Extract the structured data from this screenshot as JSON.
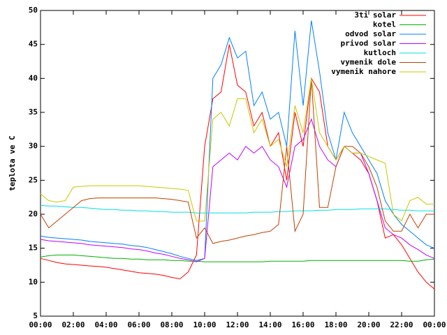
{
  "chart_data": {
    "type": "line",
    "y_label": "teplota ve C",
    "x": [
      0,
      0.5,
      1,
      1.5,
      2,
      2.5,
      3,
      3.5,
      4,
      4.5,
      5,
      5.5,
      6,
      6.5,
      7,
      7.5,
      8,
      8.5,
      9,
      9.5,
      10,
      10.5,
      11,
      11.5,
      12,
      12.5,
      13,
      13.5,
      14,
      14.5,
      15,
      15.5,
      16,
      16.5,
      17,
      17.5,
      18,
      18.5,
      19,
      19.5,
      20,
      20.5,
      21,
      21.5,
      22,
      22.5,
      23,
      23.5,
      24
    ],
    "xlim": [
      0,
      24
    ],
    "xticks": [
      {
        "value": 0,
        "label": "00:00"
      },
      {
        "value": 2,
        "label": "02:00"
      },
      {
        "value": 4,
        "label": "04:00"
      },
      {
        "value": 6,
        "label": "06:00"
      },
      {
        "value": 8,
        "label": "08:00"
      },
      {
        "value": 10,
        "label": "10:00"
      },
      {
        "value": 12,
        "label": "12:00"
      },
      {
        "value": 14,
        "label": "14:00"
      },
      {
        "value": 16,
        "label": "16:00"
      },
      {
        "value": 18,
        "label": "18:00"
      },
      {
        "value": 20,
        "label": "20:00"
      },
      {
        "value": 22,
        "label": "22:00"
      },
      {
        "value": 24,
        "label": "00:00"
      }
    ],
    "ylim": [
      5,
      50
    ],
    "yticks": [
      5,
      10,
      15,
      20,
      25,
      30,
      35,
      40,
      45,
      50
    ],
    "legend": "top-right",
    "series": [
      {
        "name": "3ti solar",
        "color": "#ff0000",
        "values": [
          13.5,
          13.2,
          12.9,
          12.7,
          12.6,
          12.5,
          12.4,
          12.3,
          12.2,
          12.0,
          11.8,
          11.6,
          11.4,
          11.3,
          11.2,
          11.0,
          10.7,
          10.5,
          11.5,
          14,
          30,
          37,
          38,
          45,
          39,
          38,
          33,
          35,
          30,
          32,
          25,
          35,
          30,
          40,
          38,
          30,
          28,
          30,
          29,
          28,
          26,
          22,
          16.5,
          17,
          15.5,
          13.5,
          11.5,
          10,
          9
        ]
      },
      {
        "name": "kotel",
        "color": "#00b000",
        "values": [
          13.7,
          13.9,
          14,
          14,
          14,
          13.9,
          13.8,
          13.7,
          13.6,
          13.5,
          13.5,
          13.4,
          13.4,
          13.3,
          13.3,
          13.3,
          13.2,
          13.2,
          13.1,
          13.1,
          13,
          13,
          13,
          13,
          13,
          13,
          13,
          13,
          13.1,
          13.1,
          13.1,
          13.1,
          13.1,
          13.2,
          13.2,
          13.2,
          13.2,
          13.2,
          13.2,
          13.2,
          13.2,
          13.2,
          13.2,
          13.2,
          13.2,
          13.1,
          13.1,
          13.3,
          13.4
        ]
      },
      {
        "name": "odvod solar",
        "color": "#0080ff",
        "values": [
          16.8,
          16.6,
          16.5,
          16.4,
          16.3,
          16.2,
          16.0,
          15.9,
          15.8,
          15.7,
          15.6,
          15.4,
          15.3,
          15.1,
          14.8,
          14.5,
          14.2,
          13.8,
          13.5,
          13.2,
          13.5,
          40,
          42,
          46,
          43,
          44,
          36,
          38,
          34,
          35,
          30,
          47,
          36,
          48.5,
          41,
          32,
          28,
          35,
          32,
          30,
          28,
          26,
          22,
          20,
          18.5,
          17.5,
          16.5,
          15.5,
          15
        ]
      },
      {
        "name": "privod solar",
        "color": "#c000ff",
        "values": [
          16.3,
          16.1,
          16,
          15.9,
          15.8,
          15.7,
          15.5,
          15.4,
          15.3,
          15.2,
          15.1,
          14.9,
          14.8,
          14.6,
          14.3,
          14.1,
          13.8,
          13.5,
          13.3,
          13,
          13.5,
          27,
          28,
          29,
          28,
          30,
          29,
          30,
          28,
          27,
          24,
          30,
          31,
          34,
          30,
          28,
          27,
          30,
          29,
          29,
          26,
          22,
          18,
          17,
          16.5,
          15.5,
          14.8,
          14,
          13.5
        ]
      },
      {
        "name": "kutloch",
        "color": "#00e0e0",
        "values": [
          21.3,
          21.2,
          21.2,
          21.1,
          21,
          21,
          20.9,
          20.8,
          20.7,
          20.7,
          20.6,
          20.6,
          20.5,
          20.5,
          20.4,
          20.4,
          20.3,
          20.3,
          20.3,
          20.2,
          20.2,
          20.2,
          20.2,
          20.2,
          20.2,
          20.2,
          20.3,
          20.3,
          20.3,
          20.4,
          20.4,
          20.5,
          20.5,
          20.5,
          20.6,
          20.6,
          20.7,
          20.7,
          20.7,
          20.8,
          20.8,
          20.8,
          20.8,
          20.7,
          20.6,
          20.6,
          20.5,
          20.5,
          20.5
        ]
      },
      {
        "name": "vymenik dole",
        "color": "#c04000",
        "values": [
          20,
          18,
          19,
          20,
          21,
          22,
          22.3,
          22.4,
          22.4,
          22.4,
          22.4,
          22.4,
          22.4,
          22.4,
          22.4,
          22.3,
          22.2,
          22,
          21.8,
          16.5,
          18,
          15.7,
          16,
          16.2,
          16.5,
          16.8,
          17,
          17.3,
          17.5,
          18.5,
          30,
          17.5,
          20,
          40,
          21,
          21,
          27,
          30,
          30,
          29,
          27,
          24,
          19,
          17.5,
          17.5,
          20,
          18,
          20,
          20
        ]
      },
      {
        "name": "vymenik nahore",
        "color": "#c8c800",
        "values": [
          23,
          22,
          21.8,
          22,
          24,
          24.1,
          24.2,
          24.2,
          24.2,
          24.2,
          24.2,
          24.2,
          24.2,
          24.1,
          24,
          23.9,
          23.8,
          23.7,
          23.5,
          19,
          19,
          34,
          35,
          33,
          37,
          37,
          32,
          34,
          30,
          31,
          27,
          36,
          32,
          40,
          32,
          30,
          28,
          30,
          29,
          29,
          28.5,
          28,
          27.5,
          20,
          19,
          22,
          22.5,
          21.5,
          21.5
        ]
      }
    ]
  }
}
